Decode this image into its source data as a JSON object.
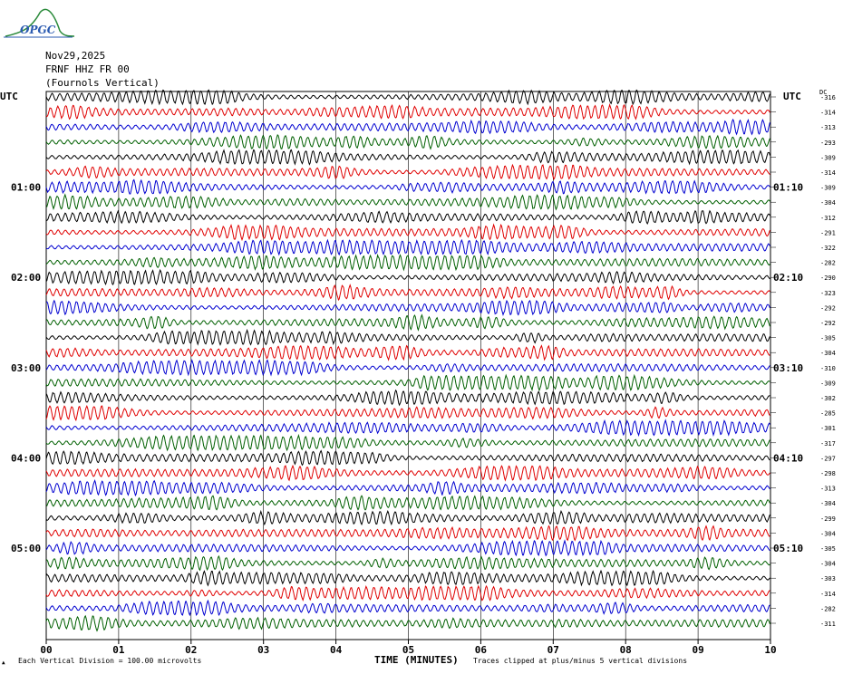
{
  "header": {
    "logo_text": "OPGC",
    "date": "Nov29,2025",
    "station": "FRNF HHZ FR 00",
    "location": "(Fournols Vertical)"
  },
  "axes": {
    "left_tz": "UTC",
    "right_tz": "UTC",
    "dc_label": "DC",
    "xlabel": "TIME (MINUTES)"
  },
  "footer": {
    "scale_note": "Each Vertical Division =  100.00 microvolts",
    "clip_note": "Traces clipped at plus/minus 5 vertical divisions"
  },
  "colors": {
    "trace_cycle": [
      "#000000",
      "#e00000",
      "#0000d0",
      "#006000"
    ],
    "grid": "#000000"
  },
  "chart_data": {
    "type": "line",
    "title": "",
    "xlabel": "TIME (MINUTES)",
    "ylabel": "",
    "xlim": [
      0,
      10
    ],
    "x_ticks": [
      "00",
      "01",
      "02",
      "03",
      "04",
      "05",
      "06",
      "07",
      "08",
      "09",
      "10"
    ],
    "left_hour_labels": [
      {
        "row": 6,
        "label": "01:00"
      },
      {
        "row": 12,
        "label": "02:00"
      },
      {
        "row": 18,
        "label": "03:00"
      },
      {
        "row": 24,
        "label": "04:00"
      },
      {
        "row": 30,
        "label": "05:00"
      }
    ],
    "right_hour_labels": [
      {
        "row": 6,
        "label": "01:10"
      },
      {
        "row": 12,
        "label": "02:10"
      },
      {
        "row": 18,
        "label": "03:10"
      },
      {
        "row": 24,
        "label": "04:10"
      },
      {
        "row": 30,
        "label": "05:10"
      }
    ],
    "dc_offsets": [
      -316,
      -314,
      -313,
      -293,
      -309,
      -314,
      -309,
      -304,
      -312,
      -291,
      -322,
      -282,
      -290,
      -323,
      -292,
      -292,
      -305,
      -304,
      -310,
      -309,
      -302,
      -285,
      -301,
      -317,
      -297,
      -298,
      -313,
      -304,
      -299,
      -304,
      -305,
      -304,
      -303,
      -314,
      -282,
      -311
    ],
    "num_traces": 36,
    "minutes_per_trace": 10
  }
}
